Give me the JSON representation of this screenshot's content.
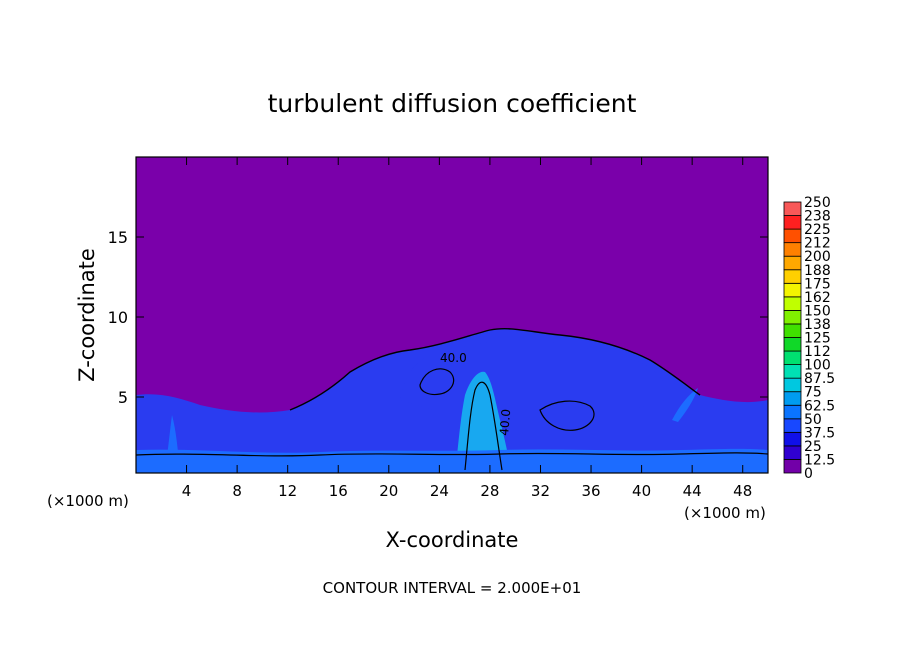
{
  "chart_data": {
    "type": "heatmap",
    "title": "turbulent diffusion coefficient",
    "xlabel": "X-coordinate",
    "ylabel": "Z-coordinate",
    "x_unit_left": "(×1000 m)",
    "x_unit_right": "(×1000 m)",
    "footer": "CONTOUR INTERVAL = 2.000E+01",
    "xlim": [
      0,
      50
    ],
    "ylim": [
      0.25,
      20
    ],
    "x_ticks": [
      4,
      8,
      12,
      16,
      20,
      24,
      28,
      32,
      36,
      40,
      44,
      48
    ],
    "y_ticks": [
      5,
      10,
      15
    ],
    "contour_labels": [
      "40.0",
      "40.0"
    ],
    "colorbar": {
      "levels": [
        "0",
        "12.5",
        "25",
        "37.5",
        "50",
        "62.5",
        "75",
        "87.5",
        "100",
        "112",
        "125",
        "138",
        "150",
        "162",
        "175",
        "188",
        "200",
        "212",
        "225",
        "238",
        "250"
      ],
      "colors": [
        "#7200a8",
        "#3000d0",
        "#1010e8",
        "#1848ff",
        "#0a74ff",
        "#009cf0",
        "#00c8e0",
        "#00e0b4",
        "#00e070",
        "#10d828",
        "#40e000",
        "#80f000",
        "#c0ff00",
        "#f4f400",
        "#ffd000",
        "#ffa800",
        "#ff8000",
        "#ff5000",
        "#ff2020",
        "#f85858"
      ]
    },
    "background_value_color": "#7a00aa",
    "field_colors": {
      "low": "#7a00aa",
      "mid": "#2a3cf0",
      "high": "#1c6cff",
      "peak": "#18a8f0"
    }
  }
}
